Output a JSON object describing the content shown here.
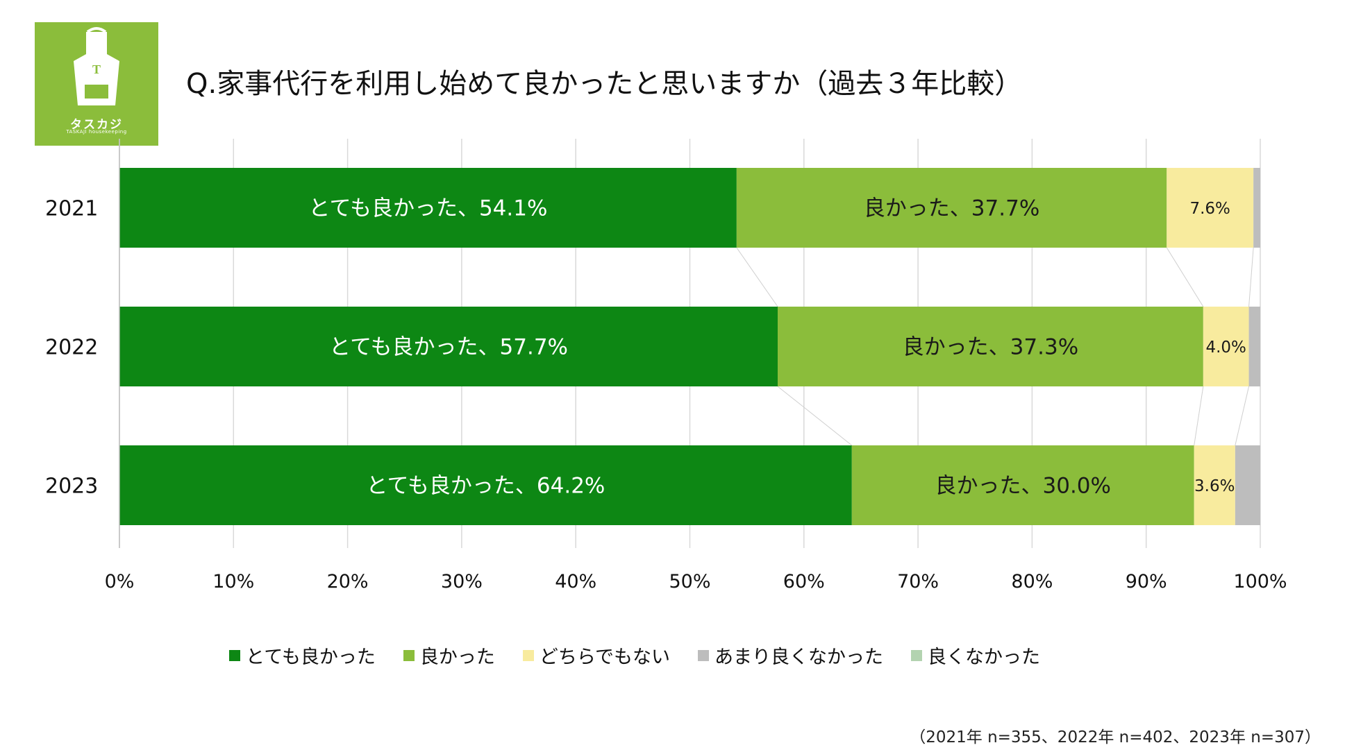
{
  "logo": {
    "letter": "T",
    "name": "タスカジ",
    "subtitle": "TASKAJI housekeeping"
  },
  "title": "Q.家事代行を利用し始めて良かったと思いますか（過去３年比較）",
  "chart_data": {
    "type": "bar",
    "orientation": "horizontal",
    "stacked": true,
    "normalized_100": true,
    "categories": [
      "2021",
      "2022",
      "2023"
    ],
    "series": [
      {
        "name": "とても良かった",
        "color": "#0d8714",
        "values": [
          54.1,
          57.7,
          64.2
        ],
        "labels": [
          "とても良かった、54.1%",
          "とても良かった、57.7%",
          "とても良かった、64.2%"
        ],
        "label_color": "#ffffff"
      },
      {
        "name": "良かった",
        "color": "#8bbd3b",
        "values": [
          37.7,
          37.3,
          30.0
        ],
        "labels": [
          "良かった、37.7%",
          "良かった、37.3%",
          "良かった、30.0%"
        ],
        "label_color": "#1a1a1a"
      },
      {
        "name": "どちらでもない",
        "color": "#f8eb9e",
        "values": [
          7.6,
          4.0,
          3.6
        ],
        "labels": [
          "7.6%",
          "4.0%",
          "3.6%"
        ],
        "label_color": "#1a1a1a"
      },
      {
        "name": "あまり良くなかった",
        "color": "#bdbdbd",
        "values": [
          0.6,
          1.0,
          2.2
        ],
        "labels": [
          "",
          "",
          ""
        ],
        "label_color": "#1a1a1a"
      },
      {
        "name": "良くなかった",
        "color": "#b3d3b0",
        "values": [
          0,
          0,
          0
        ],
        "labels": [
          "",
          "",
          ""
        ],
        "label_color": "#1a1a1a"
      }
    ],
    "xlim": [
      0,
      100
    ],
    "xticks": [
      "0%",
      "10%",
      "20%",
      "30%",
      "40%",
      "50%",
      "60%",
      "70%",
      "80%",
      "90%",
      "100%"
    ],
    "grid": true,
    "legend_position": "bottom",
    "note": "（2021年 n=355、2022年 n=402、2023年 n=307）"
  }
}
